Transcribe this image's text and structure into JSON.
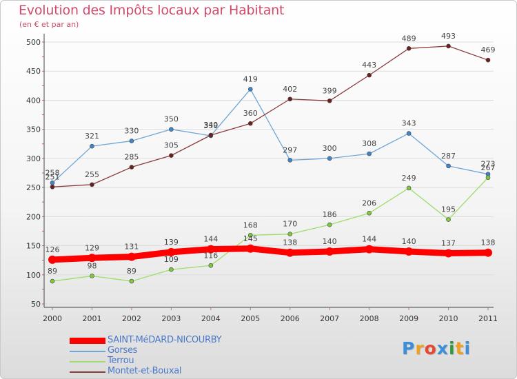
{
  "title": "Evolution des Impôts locaux par Habitant",
  "subtitle": "(en € et par an)",
  "colors": {
    "title": "#d14a6a",
    "axis_text": "#333333",
    "grid": "#dddddd",
    "legend_text": "#4a78c8"
  },
  "chart_data": {
    "type": "line",
    "title": "Evolution des Impôts locaux par Habitant",
    "subtitle": "(en € et par an)",
    "xlabel": "",
    "ylabel": "",
    "x": [
      "2000",
      "2001",
      "2002",
      "2003",
      "2004",
      "2005",
      "2006",
      "2007",
      "2008",
      "2009",
      "2010",
      "2011"
    ],
    "ylim": [
      50,
      500
    ],
    "yticks": [
      50,
      100,
      150,
      200,
      250,
      300,
      350,
      400,
      450,
      500
    ],
    "grid": true,
    "legend_position": "bottom-left",
    "series": [
      {
        "name": "SAINT-MéDARD-NICOURBY",
        "color": "#ff0000",
        "dot": "#ff0000",
        "emphasis": true,
        "values": [
          126,
          129,
          131,
          139,
          144,
          145,
          138,
          140,
          144,
          140,
          137,
          138
        ]
      },
      {
        "name": "Gorses",
        "color": "#6fa6d6",
        "dot": "#3f86c8",
        "emphasis": false,
        "values": [
          258,
          321,
          330,
          350,
          339,
          419,
          297,
          300,
          308,
          343,
          287,
          273
        ]
      },
      {
        "name": "Terrou",
        "color": "#9fdc6a",
        "dot": "#7ec83f",
        "emphasis": false,
        "values": [
          89,
          98,
          89,
          109,
          116,
          168,
          170,
          186,
          206,
          249,
          195,
          267
        ]
      },
      {
        "name": "Montet-et-Bouxal",
        "color": "#8b3a3a",
        "dot": "#6b1f1f",
        "emphasis": false,
        "values": [
          251,
          255,
          285,
          305,
          340,
          360,
          402,
          399,
          443,
          489,
          493,
          469
        ]
      }
    ]
  },
  "logo": {
    "letters": [
      "P",
      "r",
      "o",
      "x",
      "i",
      "t",
      "i"
    ],
    "colors": [
      "#3a8fd8",
      "#f0a020",
      "#e84830",
      "#3a8fd8",
      "#2e9b3a",
      "#f0a020",
      "#3a8fd8"
    ]
  }
}
